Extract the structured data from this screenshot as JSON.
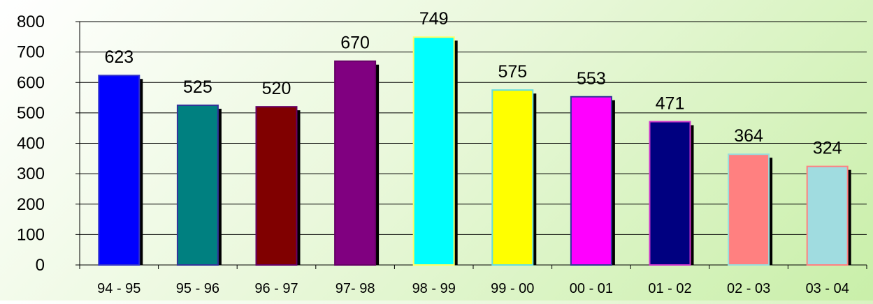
{
  "chart_data": {
    "type": "bar",
    "categories": [
      "94 - 95",
      "95 - 96",
      "96 - 97",
      "97- 98",
      "98 - 99",
      "99 - 00",
      "00 - 01",
      "01 - 02",
      "02 - 03",
      "03 - 04"
    ],
    "values": [
      623,
      525,
      520,
      670,
      749,
      575,
      553,
      471,
      364,
      324
    ],
    "data_labels": [
      "623",
      "525",
      "520",
      "670",
      "749",
      "575",
      "553",
      "471",
      "364",
      "324"
    ],
    "y_ticks": [
      "0",
      "100",
      "200",
      "300",
      "400",
      "500",
      "600",
      "700",
      "800"
    ],
    "ylim": [
      0,
      800
    ],
    "grid": true,
    "legend": false,
    "bar_colors": [
      "#0000ff",
      "#008080",
      "#800000",
      "#800080",
      "#00ffff",
      "#ffff00",
      "#ff00ff",
      "#000080",
      "#ff8080",
      "#a0dce0"
    ],
    "bar_border_colors": [
      "#3333cc",
      "#333399",
      "#660066",
      "#660066",
      "#ffff66",
      "#66dddd",
      "#333399",
      "#cc33cc",
      "#99dddd",
      "#ff8080"
    ],
    "shadow_color": "#000000",
    "gridline_color": "#000000"
  }
}
